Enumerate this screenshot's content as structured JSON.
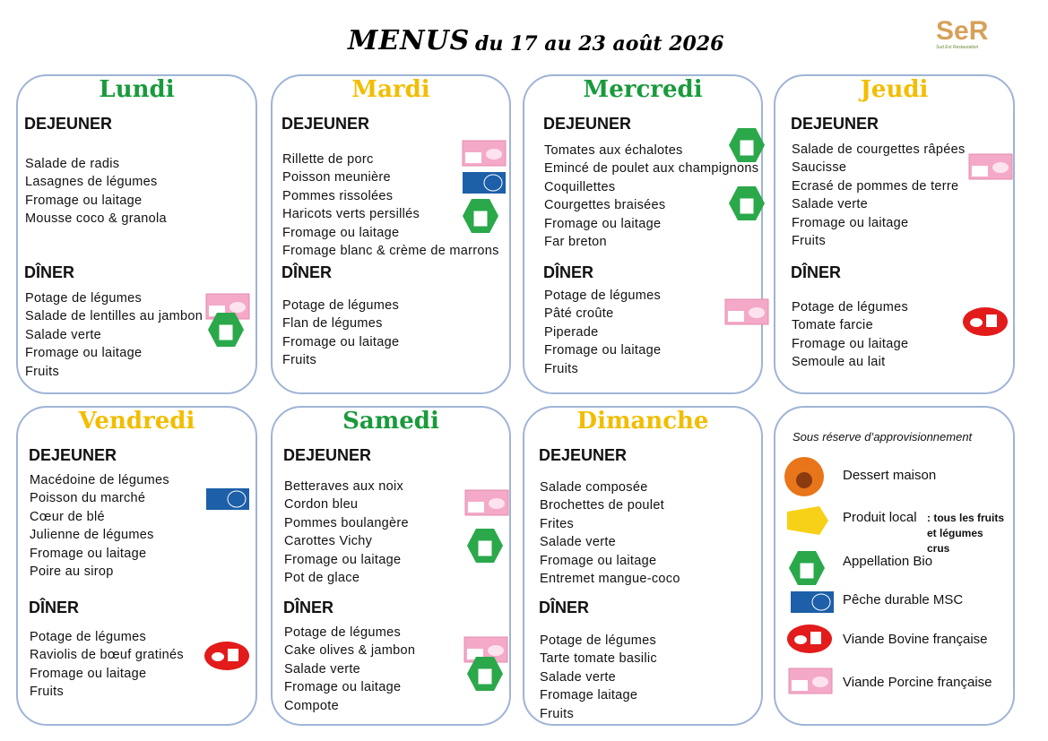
{
  "header": {
    "title_main": "MENUS",
    "title_rest": "du 17 au 23 août 2026",
    "logo": "SeR",
    "logo_tagline": "Sud Est Restauration"
  },
  "days": [
    {
      "name": "Lundi",
      "lunch_label": "DEJEUNER",
      "lunch": [
        "Salade de radis",
        "Lasagnes de légumes",
        "Fromage ou laitage",
        "Mousse coco & granola"
      ],
      "dinner_label": "DÎNER",
      "dinner": [
        "Potage de légumes",
        "Salade de lentilles au jambon",
        "Salade verte",
        "Fromage ou laitage",
        "Fruits"
      ]
    },
    {
      "name": "Mardi",
      "lunch_label": "DEJEUNER",
      "lunch": [
        "Rillette de porc",
        "Poisson meunière",
        "Pommes rissolées",
        "Haricots verts persillés",
        "Fromage ou laitage",
        "Fromage blanc & crème de marrons"
      ],
      "dinner_label": "DÎNER",
      "dinner": [
        "Potage de légumes",
        "Flan de légumes",
        "Fromage ou laitage",
        "Fruits"
      ]
    },
    {
      "name": "Mercredi",
      "lunch_label": "DEJEUNER",
      "lunch": [
        "Tomates aux échalotes",
        "Emincé de poulet aux champignons",
        "Coquillettes",
        "Courgettes braisées",
        "Fromage ou laitage",
        "Far breton"
      ],
      "dinner_label": "DÎNER",
      "dinner": [
        "Potage de légumes",
        "Pâté croûte",
        "Piperade",
        "Fromage ou laitage",
        "Fruits"
      ]
    },
    {
      "name": "Jeudi",
      "lunch_label": "DEJEUNER",
      "lunch": [
        "Salade de courgettes râpées",
        "Saucisse",
        "Ecrasé de pommes de terre",
        "Salade verte",
        "Fromage ou laitage",
        "Fruits"
      ],
      "dinner_label": "DÎNER",
      "dinner": [
        "Potage de légumes",
        "Tomate farcie",
        "Fromage ou laitage",
        "Semoule au lait"
      ]
    },
    {
      "name": "Vendredi",
      "lunch_label": "DEJEUNER",
      "lunch": [
        "Macédoine de légumes",
        "Poisson du marché",
        "Cœur de blé",
        "Julienne de légumes",
        "Fromage ou laitage",
        "Poire au sirop"
      ],
      "dinner_label": "DÎNER",
      "dinner": [
        "Potage de légumes",
        "Raviolis de bœuf gratinés",
        "Fromage ou laitage",
        "Fruits"
      ]
    },
    {
      "name": "Samedi",
      "lunch_label": "DEJEUNER",
      "lunch": [
        "Betteraves aux noix",
        "Cordon bleu",
        "Pommes boulangère",
        "Carottes Vichy",
        "Fromage ou laitage",
        "Pot de glace"
      ],
      "dinner_label": "DÎNER",
      "dinner": [
        "Potage de légumes",
        "Cake olives & jambon",
        "Salade verte",
        "Fromage ou laitage",
        "Compote"
      ]
    },
    {
      "name": "Dimanche",
      "lunch_label": "DEJEUNER",
      "lunch": [
        "Salade composée",
        "Brochettes de poulet",
        "Frites",
        "Salade verte",
        "Fromage ou laitage",
        "Entremet mangue-coco"
      ],
      "dinner_label": "DÎNER",
      "dinner": [
        "Potage de légumes",
        "Tarte tomate basilic",
        "Salade verte",
        "Fromage laitage",
        "Fruits"
      ]
    }
  ],
  "legend": {
    "note": "Sous réserve d’approvisionnement",
    "items": [
      "Dessert maison",
      "Produit local",
      "Appellation Bio",
      "Pêche durable MSC",
      "Viande Bovine française",
      "Viande Porcine française"
    ],
    "local_note": ": tous les fruits et légumes crus"
  }
}
